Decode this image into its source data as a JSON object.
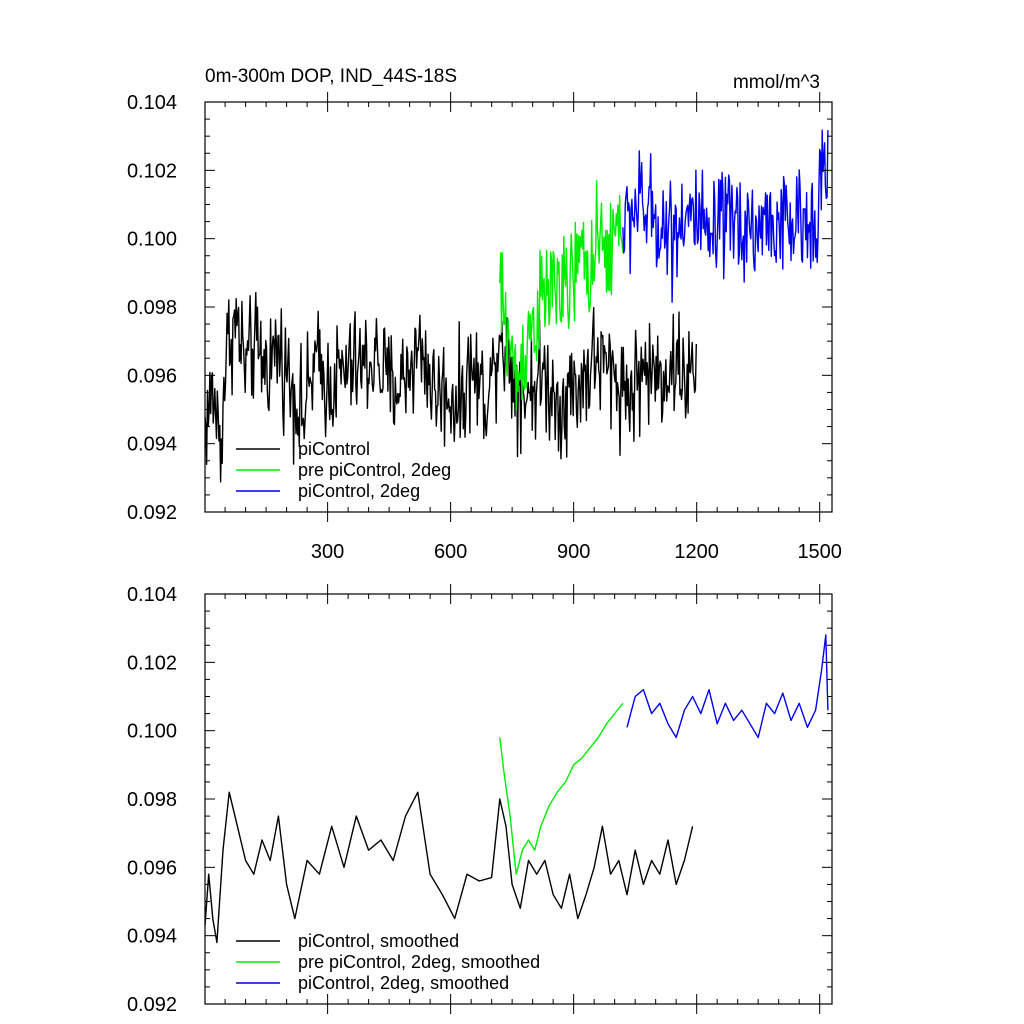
{
  "chart_data": [
    {
      "type": "line",
      "title": "0m-300m DOP, IND_44S-18S",
      "units": "mmol/m^3",
      "xlabel": "",
      "ylabel": "",
      "xlim": [
        1,
        1530
      ],
      "ylim": [
        0.092,
        0.104
      ],
      "x_ticks": [
        300,
        600,
        900,
        1200,
        1500
      ],
      "x_tick_labels": [
        "300",
        "600",
        "900",
        "1200",
        "1500"
      ],
      "y_ticks": [
        0.092,
        0.094,
        0.096,
        0.098,
        0.1,
        0.102,
        0.104
      ],
      "y_tick_labels": [
        "0.092",
        "0.094",
        "0.096",
        "0.098",
        "0.100",
        "0.102",
        "0.104"
      ],
      "grid": false,
      "legend_position": "bottom-left",
      "series": [
        {
          "name": "piControl",
          "color": "#000000",
          "x": [
            1,
            20,
            40,
            50,
            60,
            80,
            100,
            120,
            150,
            180,
            210,
            240,
            270,
            300,
            330,
            360,
            390,
            420,
            450,
            480,
            510,
            530,
            560,
            590,
            620,
            650,
            680,
            700,
            720,
            740,
            760,
            780,
            800,
            830,
            860,
            890,
            920,
            950,
            980,
            1010,
            1040,
            1070,
            1100,
            1130,
            1160,
            1180,
            1200
          ],
          "values": [
            0.0945,
            0.0955,
            0.094,
            0.0962,
            0.0972,
            0.0975,
            0.0962,
            0.0968,
            0.0963,
            0.0968,
            0.0958,
            0.0948,
            0.0964,
            0.0957,
            0.096,
            0.0962,
            0.0963,
            0.0965,
            0.0957,
            0.0958,
            0.0965,
            0.0968,
            0.0955,
            0.0955,
            0.0952,
            0.0962,
            0.0955,
            0.0958,
            0.0975,
            0.0965,
            0.0958,
            0.0955,
            0.0957,
            0.096,
            0.0952,
            0.0955,
            0.0958,
            0.0965,
            0.0962,
            0.0958,
            0.0955,
            0.0962,
            0.096,
            0.0962,
            0.0963,
            0.0958,
            0.0962
          ]
        },
        {
          "name": "pre piControl, 2deg",
          "color": "#00ee00",
          "x": [
            720,
            730,
            740,
            750,
            760,
            770,
            780,
            790,
            800,
            820,
            840,
            860,
            880,
            900,
            920,
            940,
            960,
            980,
            1000,
            1020
          ],
          "values": [
            0.0985,
            0.0978,
            0.0972,
            0.0965,
            0.0958,
            0.0962,
            0.0968,
            0.0972,
            0.0975,
            0.098,
            0.0985,
            0.0988,
            0.0982,
            0.099,
            0.0995,
            0.0992,
            0.0997,
            0.0995,
            0.1,
            0.1005
          ]
        },
        {
          "name": "piControl, 2deg",
          "color": "#0000ee",
          "x": [
            1020,
            1050,
            1080,
            1110,
            1140,
            1170,
            1200,
            1230,
            1260,
            1290,
            1320,
            1350,
            1380,
            1410,
            1440,
            1470,
            1500,
            1520
          ],
          "values": [
            0.1002,
            0.101,
            0.1008,
            0.1005,
            0.1002,
            0.1008,
            0.1005,
            0.0998,
            0.1003,
            0.1005,
            0.1004,
            0.1002,
            0.1006,
            0.1003,
            0.1004,
            0.1003,
            0.1015,
            0.1022
          ]
        }
      ]
    },
    {
      "type": "line",
      "title": "",
      "xlabel": "",
      "ylabel": "",
      "xlim": [
        1,
        1530
      ],
      "ylim": [
        0.092,
        0.104
      ],
      "x_ticks": [
        300,
        600,
        900,
        1200,
        1500
      ],
      "y_ticks": [
        0.092,
        0.094,
        0.096,
        0.098,
        0.1,
        0.102,
        0.104
      ],
      "y_tick_labels": [
        "0.092",
        "0.094",
        "0.096",
        "0.098",
        "0.100",
        "0.102",
        "0.104"
      ],
      "grid": false,
      "legend_position": "bottom-left",
      "series": [
        {
          "name": "piControl, smoothed",
          "color": "#000000",
          "x": [
            1,
            10,
            20,
            30,
            45,
            60,
            80,
            100,
            120,
            140,
            160,
            180,
            200,
            220,
            250,
            280,
            310,
            340,
            370,
            400,
            430,
            460,
            490,
            520,
            550,
            580,
            610,
            640,
            670,
            700,
            720,
            735,
            750,
            770,
            790,
            810,
            830,
            850,
            870,
            890,
            910,
            930,
            950,
            970,
            990,
            1010,
            1030,
            1050,
            1070,
            1090,
            1110,
            1130,
            1150,
            1170,
            1190
          ],
          "values": [
            0.0943,
            0.0958,
            0.0945,
            0.0938,
            0.0965,
            0.0982,
            0.0972,
            0.0962,
            0.0958,
            0.0968,
            0.0962,
            0.0975,
            0.0955,
            0.0945,
            0.0962,
            0.0958,
            0.0972,
            0.096,
            0.0975,
            0.0965,
            0.0968,
            0.0962,
            0.0975,
            0.0982,
            0.0958,
            0.0952,
            0.0945,
            0.0958,
            0.0956,
            0.0957,
            0.098,
            0.0972,
            0.0955,
            0.0948,
            0.0962,
            0.0958,
            0.0962,
            0.0952,
            0.0948,
            0.0958,
            0.0945,
            0.0952,
            0.096,
            0.0972,
            0.0958,
            0.0962,
            0.0952,
            0.0965,
            0.0955,
            0.0962,
            0.0958,
            0.0968,
            0.0955,
            0.0962,
            0.0972
          ]
        },
        {
          "name": "pre piControl, 2deg, smoothed",
          "color": "#00ee00",
          "x": [
            720,
            730,
            745,
            760,
            775,
            790,
            805,
            820,
            840,
            860,
            880,
            900,
            920,
            940,
            960,
            980,
            1000,
            1020
          ],
          "values": [
            0.0998,
            0.0988,
            0.0975,
            0.0958,
            0.0965,
            0.0968,
            0.0965,
            0.0972,
            0.0978,
            0.0982,
            0.0985,
            0.099,
            0.0992,
            0.0995,
            0.0998,
            0.1002,
            0.1005,
            0.1008
          ]
        },
        {
          "name": "piControl, 2deg, smoothed",
          "color": "#0000ee",
          "x": [
            1030,
            1050,
            1070,
            1090,
            1110,
            1130,
            1150,
            1170,
            1190,
            1210,
            1230,
            1250,
            1270,
            1290,
            1310,
            1330,
            1350,
            1370,
            1390,
            1410,
            1430,
            1450,
            1470,
            1490,
            1505,
            1515,
            1520
          ],
          "values": [
            0.1001,
            0.101,
            0.1012,
            0.1005,
            0.1008,
            0.1002,
            0.0998,
            0.1006,
            0.101,
            0.1005,
            0.1012,
            0.1002,
            0.1008,
            0.1003,
            0.1006,
            0.1002,
            0.0998,
            0.1008,
            0.1005,
            0.1011,
            0.1003,
            0.1008,
            0.1001,
            0.1006,
            0.1018,
            0.1028,
            0.1006
          ]
        }
      ]
    }
  ]
}
